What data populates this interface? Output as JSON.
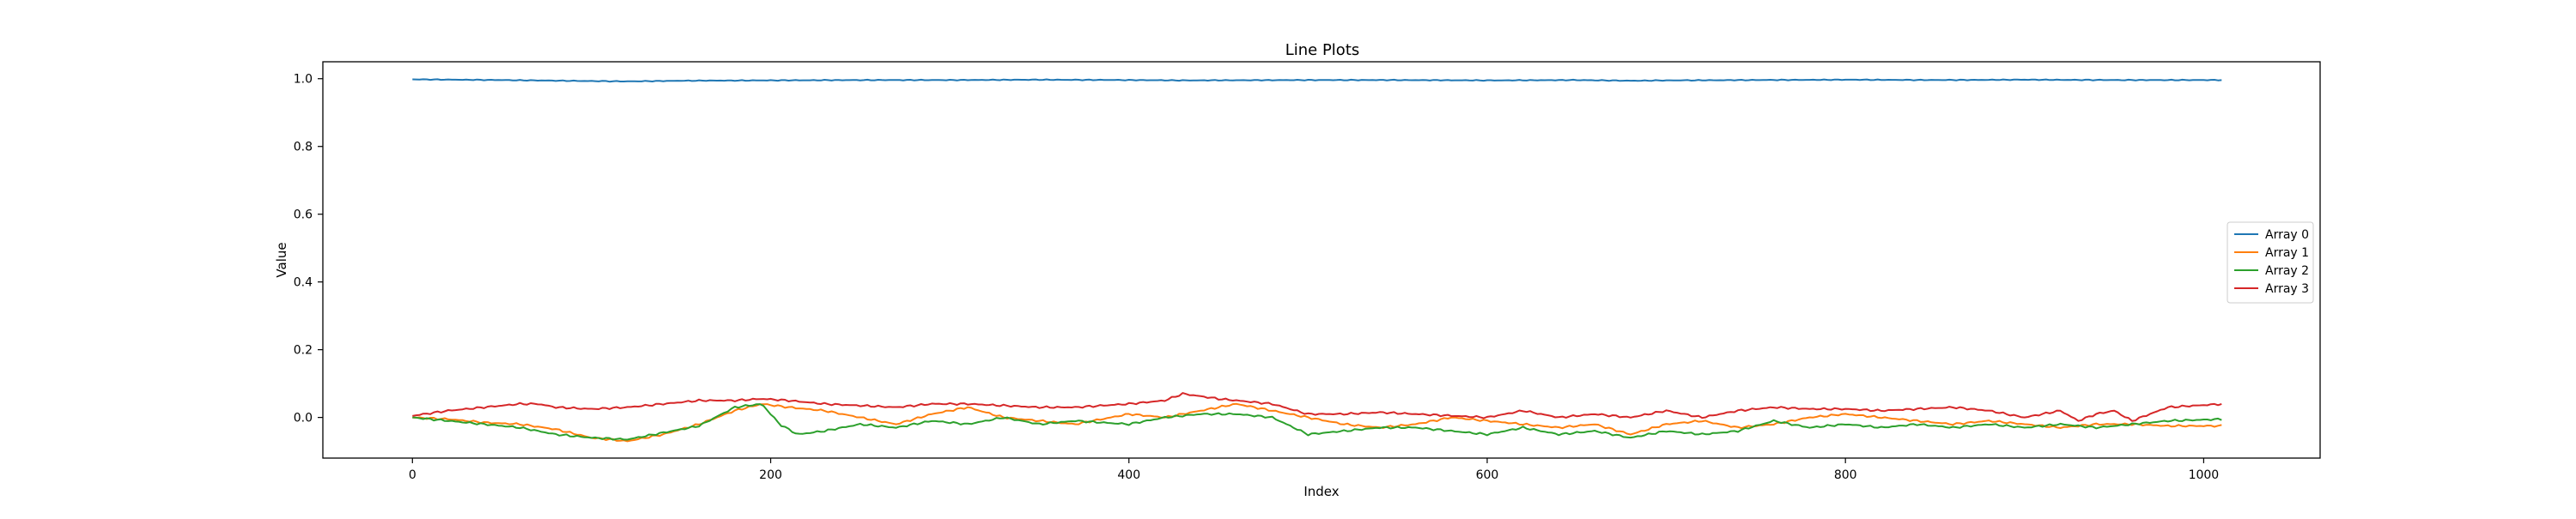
{
  "chart_data": {
    "type": "line",
    "title": "Line Plots",
    "xlabel": "Index",
    "ylabel": "Value",
    "xlim": [
      -50,
      1065
    ],
    "ylim": [
      -0.12,
      1.05
    ],
    "x_ticks": [
      0,
      200,
      400,
      600,
      800,
      1000
    ],
    "y_ticks": [
      0.0,
      0.2,
      0.4,
      0.6,
      0.8,
      1.0
    ],
    "y_tick_labels": [
      "0.0",
      "0.2",
      "0.4",
      "0.6",
      "0.8",
      "1.0"
    ],
    "grid": false,
    "legend_position": "center-right",
    "x_range": [
      0,
      1011
    ],
    "series": [
      {
        "name": "Array 0",
        "color": "#1f77b4",
        "x": [
          0,
          50,
          100,
          120,
          150,
          200,
          250,
          300,
          350,
          400,
          430,
          500,
          550,
          600,
          650,
          680,
          700,
          750,
          800,
          850,
          900,
          950,
          1011
        ],
        "y": [
          0.998,
          0.996,
          0.993,
          0.992,
          0.994,
          0.995,
          0.996,
          0.996,
          0.997,
          0.996,
          0.995,
          0.996,
          0.996,
          0.995,
          0.996,
          0.994,
          0.995,
          0.996,
          0.997,
          0.996,
          0.997,
          0.996,
          0.996
        ]
      },
      {
        "name": "Array 1",
        "color": "#ff7f0e",
        "x": [
          0,
          20,
          40,
          60,
          80,
          100,
          120,
          140,
          160,
          180,
          195,
          210,
          230,
          250,
          270,
          290,
          310,
          330,
          350,
          370,
          400,
          420,
          440,
          460,
          480,
          500,
          520,
          540,
          560,
          580,
          600,
          620,
          640,
          660,
          680,
          700,
          720,
          740,
          760,
          780,
          800,
          820,
          840,
          860,
          880,
          900,
          920,
          940,
          960,
          980,
          1011
        ],
        "y": [
          0.0,
          -0.005,
          -0.015,
          -0.02,
          -0.035,
          -0.06,
          -0.07,
          -0.05,
          -0.02,
          0.02,
          0.04,
          0.03,
          0.02,
          0.0,
          -0.02,
          0.01,
          0.03,
          0.0,
          -0.01,
          -0.02,
          0.01,
          0.0,
          0.02,
          0.04,
          0.02,
          0.0,
          -0.02,
          -0.03,
          -0.02,
          0.0,
          -0.01,
          -0.02,
          -0.03,
          -0.02,
          -0.05,
          -0.02,
          -0.01,
          -0.03,
          -0.02,
          0.0,
          0.01,
          0.0,
          -0.01,
          -0.02,
          -0.01,
          -0.02,
          -0.03,
          -0.02,
          -0.02,
          -0.025,
          -0.025
        ]
      },
      {
        "name": "Array 2",
        "color": "#2ca02c",
        "x": [
          0,
          20,
          40,
          60,
          80,
          100,
          120,
          140,
          160,
          180,
          195,
          205,
          215,
          230,
          250,
          270,
          290,
          310,
          330,
          350,
          370,
          400,
          420,
          440,
          460,
          480,
          500,
          520,
          540,
          560,
          580,
          600,
          620,
          640,
          660,
          680,
          700,
          720,
          740,
          760,
          780,
          800,
          820,
          840,
          860,
          880,
          900,
          920,
          940,
          960,
          980,
          1011
        ],
        "y": [
          0.0,
          -0.01,
          -0.02,
          -0.03,
          -0.05,
          -0.06,
          -0.065,
          -0.045,
          -0.025,
          0.03,
          0.04,
          -0.02,
          -0.05,
          -0.04,
          -0.02,
          -0.03,
          -0.01,
          -0.02,
          0.0,
          -0.02,
          -0.01,
          -0.02,
          0.0,
          0.01,
          0.01,
          0.0,
          -0.05,
          -0.04,
          -0.03,
          -0.03,
          -0.04,
          -0.05,
          -0.03,
          -0.05,
          -0.04,
          -0.06,
          -0.04,
          -0.05,
          -0.04,
          -0.01,
          -0.03,
          -0.02,
          -0.03,
          -0.02,
          -0.03,
          -0.02,
          -0.03,
          -0.02,
          -0.03,
          -0.02,
          -0.01,
          -0.005
        ]
      },
      {
        "name": "Array 3",
        "color": "#d62728",
        "x": [
          0,
          20,
          40,
          60,
          70,
          80,
          100,
          120,
          140,
          160,
          180,
          195,
          210,
          230,
          250,
          270,
          290,
          310,
          330,
          350,
          370,
          400,
          420,
          430,
          450,
          480,
          500,
          520,
          540,
          560,
          580,
          600,
          620,
          640,
          660,
          680,
          700,
          720,
          740,
          760,
          780,
          800,
          820,
          840,
          860,
          880,
          900,
          920,
          930,
          940,
          950,
          960,
          980,
          1011
        ],
        "y": [
          0.005,
          0.02,
          0.03,
          0.04,
          0.04,
          0.03,
          0.025,
          0.03,
          0.04,
          0.05,
          0.05,
          0.055,
          0.05,
          0.04,
          0.035,
          0.03,
          0.04,
          0.04,
          0.035,
          0.03,
          0.03,
          0.04,
          0.05,
          0.07,
          0.055,
          0.04,
          0.01,
          0.01,
          0.015,
          0.01,
          0.005,
          0.0,
          0.02,
          0.0,
          0.01,
          0.0,
          0.02,
          0.0,
          0.02,
          0.03,
          0.025,
          0.025,
          0.02,
          0.025,
          0.03,
          0.02,
          0.0,
          0.02,
          -0.01,
          0.01,
          0.02,
          -0.01,
          0.03,
          0.04
        ]
      }
    ]
  }
}
